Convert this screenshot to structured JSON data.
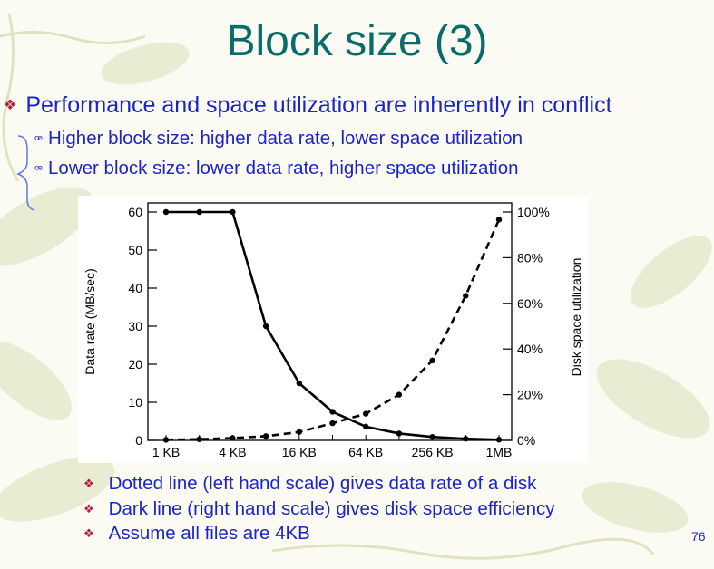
{
  "title": "Block size (3)",
  "main_bullet": "Performance and space utilization are inherently in conflict",
  "sub_bullets": [
    "Higher block size: higher data rate, lower space utilization",
    "Lower block size: lower data rate, higher space utilization"
  ],
  "bottom_bullets": [
    "Dotted line (left hand scale) gives data rate of a disk",
    "Dark line (right hand scale) gives disk space efficiency",
    "Assume all files are 4KB"
  ],
  "page_number": "76",
  "colors": {
    "title": "#0a6b6b",
    "text": "#1b24c9",
    "bullet_marker": "#b0203a"
  },
  "chart_data": {
    "type": "line",
    "title": "",
    "xlabel": "",
    "ylabel": "Data rate (MB/sec)",
    "y2label": "Disk space utilization",
    "x_ticks": [
      "1 KB",
      "4 KB",
      "16 KB",
      "64 KB",
      "256 KB",
      "1MB"
    ],
    "x": [
      "1 KB",
      "2 KB",
      "4 KB",
      "8 KB",
      "16 KB",
      "32 KB",
      "64 KB",
      "128 KB",
      "256 KB",
      "512 KB",
      "1MB"
    ],
    "ylim": [
      0,
      60
    ],
    "y_ticks": [
      0,
      10,
      20,
      30,
      40,
      50,
      60
    ],
    "y2lim": [
      0,
      100
    ],
    "y2_ticks": [
      "0%",
      "20%",
      "40%",
      "60%",
      "80%",
      "100%"
    ],
    "grid": false,
    "series": [
      {
        "style": "solid",
        "axis": "right",
        "values": [
          100,
          100,
          100,
          50,
          25,
          12.5,
          6,
          3,
          1.5,
          0.7,
          0.3
        ]
      },
      {
        "style": "dashed",
        "axis": "left",
        "values": [
          0.15,
          0.3,
          0.6,
          1.1,
          2.2,
          4.5,
          7,
          12,
          21,
          38,
          58
        ]
      }
    ]
  }
}
